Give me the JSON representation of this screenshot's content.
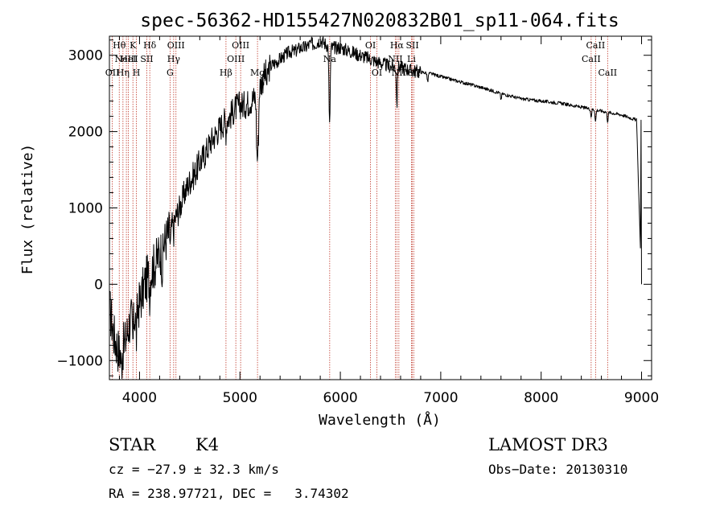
{
  "chart_data": {
    "type": "line",
    "title": "spec-56362-HD155427N020832B01_sp11-064.fits",
    "xlabel": "Wavelength (Å)",
    "ylabel": "Flux (relative)",
    "xlim": [
      3700,
      9100
    ],
    "ylim": [
      -1250,
      3250
    ],
    "x_ticks": [
      4000,
      5000,
      6000,
      7000,
      8000,
      9000
    ],
    "y_ticks": [
      -1000,
      0,
      1000,
      2000,
      3000
    ],
    "x_tick_labels": [
      "4000",
      "5000",
      "6000",
      "7000",
      "8000",
      "9000"
    ],
    "y_tick_labels": [
      "−1000",
      "0",
      "1000",
      "2000",
      "3000"
    ],
    "grid": false,
    "series": [
      {
        "name": "spectrum",
        "color": "#000000",
        "x": [
          3700,
          3750,
          3800,
          3850,
          3900,
          3950,
          4000,
          4050,
          4100,
          4150,
          4200,
          4250,
          4300,
          4350,
          4400,
          4450,
          4500,
          4550,
          4600,
          4650,
          4700,
          4750,
          4800,
          4850,
          4900,
          4950,
          5000,
          5050,
          5100,
          5150,
          5200,
          5250,
          5300,
          5350,
          5400,
          5450,
          5500,
          5550,
          5600,
          5650,
          5700,
          5750,
          5800,
          5850,
          5900,
          5950,
          6000,
          6100,
          6200,
          6300,
          6400,
          6500,
          6600,
          6700,
          6800,
          6900,
          7000,
          7200,
          7400,
          7600,
          7800,
          8000,
          8200,
          8400,
          8600,
          8800,
          8950,
          9000
        ],
        "y": [
          -300,
          -700,
          -900,
          -800,
          -500,
          -400,
          -250,
          0,
          150,
          250,
          400,
          550,
          700,
          850,
          1000,
          1200,
          1350,
          1450,
          1600,
          1700,
          1850,
          1950,
          2050,
          2150,
          2200,
          2300,
          2350,
          2350,
          2400,
          2450,
          2600,
          2750,
          2850,
          2900,
          2950,
          3000,
          3050,
          3050,
          3100,
          3100,
          3150,
          3150,
          3200,
          3150,
          3100,
          3100,
          3100,
          3050,
          3000,
          2950,
          2900,
          2850,
          2850,
          2800,
          2780,
          2760,
          2720,
          2650,
          2580,
          2500,
          2430,
          2400,
          2370,
          2320,
          2270,
          2220,
          2150,
          0
        ]
      }
    ],
    "absorption_features": [
      {
        "x": 3820,
        "depth": 200
      },
      {
        "x": 3934,
        "depth": 350
      },
      {
        "x": 3969,
        "depth": 350
      },
      {
        "x": 4102,
        "depth": 250
      },
      {
        "x": 4227,
        "depth": 300
      },
      {
        "x": 4308,
        "depth": 200
      },
      {
        "x": 4340,
        "depth": 150
      },
      {
        "x": 4861,
        "depth": 150
      },
      {
        "x": 5167,
        "depth": 550
      },
      {
        "x": 5175,
        "depth": 600
      },
      {
        "x": 5184,
        "depth": 500
      },
      {
        "x": 5270,
        "depth": 180
      },
      {
        "x": 5890,
        "depth": 650
      },
      {
        "x": 5896,
        "depth": 600
      },
      {
        "x": 6563,
        "depth": 500
      },
      {
        "x": 6870,
        "depth": 120
      },
      {
        "x": 7600,
        "depth": 80
      },
      {
        "x": 8498,
        "depth": 100
      },
      {
        "x": 8542,
        "depth": 150
      },
      {
        "x": 8662,
        "depth": 120
      }
    ],
    "line_markers": [
      {
        "x": 3729,
        "label": "OII",
        "row": 3
      },
      {
        "x": 3798,
        "label": "Hθ",
        "row": 1
      },
      {
        "x": 3835,
        "label": "Hη",
        "row": 3
      },
      {
        "x": 3869,
        "label": "NeIII",
        "row": 2
      },
      {
        "x": 3889,
        "label": "HeI",
        "row": 2
      },
      {
        "x": 3934,
        "label": "K",
        "row": 1
      },
      {
        "x": 3969,
        "label": "H",
        "row": 3
      },
      {
        "x": 4072,
        "label": "SII",
        "row": 2
      },
      {
        "x": 4102,
        "label": "Hδ",
        "row": 1
      },
      {
        "x": 4304,
        "label": "G",
        "row": 3
      },
      {
        "x": 4340,
        "label": "Hγ",
        "row": 2
      },
      {
        "x": 4363,
        "label": "OIII",
        "row": 1
      },
      {
        "x": 4861,
        "label": "Hβ",
        "row": 3
      },
      {
        "x": 4959,
        "label": "OIII",
        "row": 2
      },
      {
        "x": 5007,
        "label": "OIII",
        "row": 1
      },
      {
        "x": 5175,
        "label": "Mg",
        "row": 3
      },
      {
        "x": 5894,
        "label": "Na",
        "row": 2
      },
      {
        "x": 6300,
        "label": "OI",
        "row": 1
      },
      {
        "x": 6364,
        "label": "OI",
        "row": 3
      },
      {
        "x": 6548,
        "label": "NII",
        "row": 2
      },
      {
        "x": 6563,
        "label": "Hα",
        "row": 1
      },
      {
        "x": 6583,
        "label": "NII",
        "row": 3
      },
      {
        "x": 6708,
        "label": "Li",
        "row": 2
      },
      {
        "x": 6717,
        "label": "SII",
        "row": 1
      },
      {
        "x": 6731,
        "label": "SII",
        "row": 3
      },
      {
        "x": 8498,
        "label": "CaII",
        "row": 2
      },
      {
        "x": 8542,
        "label": "CaII",
        "row": 1
      },
      {
        "x": 8662,
        "label": "CaII",
        "row": 3
      }
    ]
  },
  "info": {
    "class": "STAR",
    "subclass": "K4",
    "survey": "LAMOST DR3",
    "cz": "cz = −27.9 ± 32.3 km/s",
    "obs_date": "Obs−Date: 20130310",
    "radec": "RA = 238.97721, DEC =   3.74302"
  }
}
